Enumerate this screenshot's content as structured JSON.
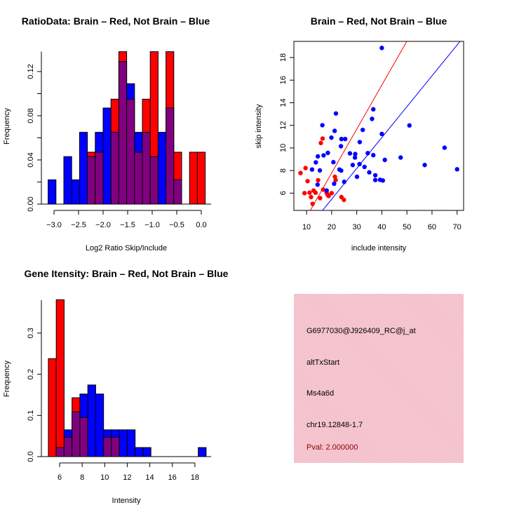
{
  "colors": {
    "red": "#ff0000",
    "blue": "#0000ff",
    "overlap": "#800080",
    "panel": "#f4c0cb",
    "pval": "#8b0000"
  },
  "chart_data": [
    {
      "type": "bar",
      "title": "RatioData: Brain – Red, Not Brain – Blue",
      "xlabel": "Log2 Ratio Skip/Include",
      "ylabel": "Frequency",
      "bin_start": -3.12,
      "bin_width": 0.16,
      "xticks": [
        -3.0,
        -2.5,
        -2.0,
        -1.5,
        -1.0,
        -0.5,
        0.0
      ],
      "xtick_labels": [
        "−3.0",
        "−2.5",
        "−2.0",
        "−1.5",
        "−1.0",
        "−0.5",
        "0.0"
      ],
      "yticks": [
        0,
        0.02,
        0.04,
        0.06,
        0.08,
        0.1,
        0.12
      ],
      "ytick_labels": [
        "0.00",
        "",
        "0.04",
        "",
        "0.08",
        "",
        "0.12"
      ],
      "ylim": [
        0,
        0.138
      ],
      "series": [
        {
          "name": "Brain",
          "color": "red",
          "values": [
            0,
            0,
            0,
            0,
            0,
            0.047,
            0.047,
            0,
            0.095,
            0.138,
            0.095,
            0.047,
            0.095,
            0.138,
            0,
            0.138,
            0.047,
            0,
            0.047,
            0.047
          ]
        },
        {
          "name": "Not Brain",
          "color": "blue",
          "values": [
            0.022,
            0,
            0.043,
            0.022,
            0.065,
            0.043,
            0.065,
            0.087,
            0.065,
            0.129,
            0.109,
            0.065,
            0.065,
            0.043,
            0.065,
            0.087,
            0.022,
            0,
            0,
            0
          ]
        }
      ]
    },
    {
      "type": "scatter",
      "title": "Brain – Red, Not Brain – Blue",
      "xlabel": "include intensity",
      "ylabel": "skip intensity",
      "xlim": [
        4.95,
        72.6
      ],
      "ylim": [
        4.47,
        19.43
      ],
      "xticks": [
        10,
        20,
        30,
        40,
        50,
        60,
        70
      ],
      "yticks": [
        6,
        8,
        10,
        12,
        14,
        16,
        18
      ],
      "lines": [
        {
          "color": "red",
          "slope": 0.389,
          "intercept": 0
        },
        {
          "color": "blue",
          "slope": 0.273,
          "intercept": 0
        }
      ],
      "series": [
        {
          "name": "Brain",
          "color": "red",
          "points": [
            [
              7.6,
              7.78
            ],
            [
              9.6,
              8.22
            ],
            [
              10.4,
              7.06
            ],
            [
              9.2,
              6.0
            ],
            [
              11.2,
              6.04
            ],
            [
              12.4,
              5.05
            ],
            [
              11.8,
              5.65
            ],
            [
              12.8,
              6.23
            ],
            [
              13.6,
              6.04
            ],
            [
              14.6,
              7.14
            ],
            [
              15.4,
              5.56
            ],
            [
              15.7,
              10.44
            ],
            [
              16.4,
              10.83
            ],
            [
              16.6,
              6.31
            ],
            [
              18.4,
              5.85
            ],
            [
              18.8,
              5.75
            ],
            [
              20.0,
              6.0
            ],
            [
              21.3,
              7.45
            ],
            [
              21.6,
              7.16
            ],
            [
              23.9,
              5.65
            ],
            [
              24.9,
              5.4
            ],
            [
              18.0,
              6.02
            ]
          ]
        },
        {
          "name": "Not Brain",
          "color": "blue",
          "points": [
            [
              40.0,
              18.85
            ],
            [
              21.7,
              13.05
            ],
            [
              36.6,
              13.42
            ],
            [
              36.1,
              12.57
            ],
            [
              16.3,
              12.01
            ],
            [
              51.0,
              11.99
            ],
            [
              32.4,
              11.6
            ],
            [
              21.2,
              11.51
            ],
            [
              40.0,
              11.24
            ],
            [
              19.9,
              10.91
            ],
            [
              23.9,
              10.79
            ],
            [
              25.4,
              10.79
            ],
            [
              31.2,
              10.52
            ],
            [
              23.7,
              10.15
            ],
            [
              18.5,
              9.56
            ],
            [
              27.3,
              9.52
            ],
            [
              34.4,
              9.54
            ],
            [
              65.0,
              10.02
            ],
            [
              14.5,
              9.25
            ],
            [
              16.8,
              9.34
            ],
            [
              29.4,
              9.46
            ],
            [
              36.6,
              9.36
            ],
            [
              29.3,
              9.15
            ],
            [
              47.5,
              9.15
            ],
            [
              41.2,
              8.94
            ],
            [
              13.7,
              8.72
            ],
            [
              20.7,
              8.74
            ],
            [
              31.1,
              8.57
            ],
            [
              28.4,
              8.49
            ],
            [
              57.1,
              8.49
            ],
            [
              33.1,
              8.32
            ],
            [
              12.2,
              8.09
            ],
            [
              15.3,
              8.01
            ],
            [
              23.1,
              8.09
            ],
            [
              23.8,
              7.99
            ],
            [
              70.0,
              8.11
            ],
            [
              35.0,
              7.84
            ],
            [
              37.4,
              7.58
            ],
            [
              30.1,
              7.45
            ],
            [
              37.4,
              7.16
            ],
            [
              39.3,
              7.18
            ],
            [
              40.4,
              7.12
            ],
            [
              25.0,
              7.0
            ],
            [
              14.4,
              6.75
            ],
            [
              21.0,
              6.83
            ],
            [
              18.0,
              6.23
            ]
          ]
        }
      ]
    },
    {
      "type": "bar",
      "title": "Gene Itensity: Brain – Red, Not Brain – Blue",
      "xlabel": "Intensity",
      "ylabel": "Frequency",
      "bin_start": 5.0,
      "bin_width": 0.7,
      "xticks": [
        6,
        8,
        10,
        12,
        14,
        16,
        18
      ],
      "xtick_labels": [
        "6",
        "8",
        "10",
        "12",
        "14",
        "16",
        "18"
      ],
      "yticks": [
        0,
        0.1,
        0.2,
        0.3
      ],
      "ytick_labels": [
        "0.0",
        "0.1",
        "0.2",
        "0.3"
      ],
      "ylim": [
        0,
        0.38
      ],
      "series": [
        {
          "name": "Brain",
          "color": "red",
          "values": [
            0.238,
            0.381,
            0.047,
            0.143,
            0.095,
            0,
            0,
            0.047,
            0.047,
            0,
            0,
            0,
            0,
            0,
            0,
            0,
            0,
            0,
            0,
            0
          ]
        },
        {
          "name": "Not Brain",
          "color": "blue",
          "values": [
            0,
            0.022,
            0.065,
            0.109,
            0.152,
            0.174,
            0.152,
            0.065,
            0.065,
            0.065,
            0.065,
            0.022,
            0.022,
            0,
            0,
            0,
            0,
            0,
            0,
            0.022
          ]
        }
      ]
    }
  ],
  "info": {
    "probe": "G6977030@J926409_RC@j_at",
    "event": "altTxStart",
    "gene": "Ms4a6d",
    "location": "chr19.12848-1.7",
    "pval": "Pval: 2.000000"
  }
}
